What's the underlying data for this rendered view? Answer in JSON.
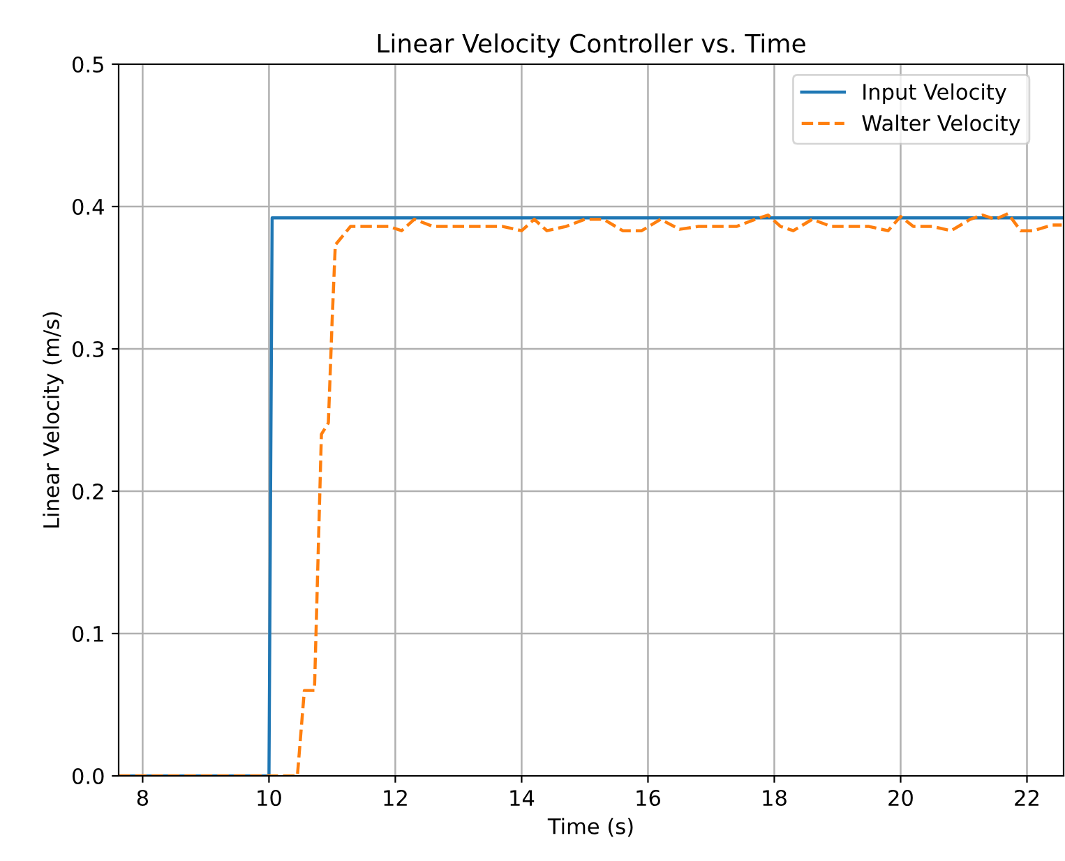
{
  "chart_data": {
    "type": "line",
    "title": "Linear Velocity Controller vs. Time",
    "xlabel": "Time (s)",
    "ylabel": "Linear Velocity (m/s)",
    "xlim": [
      7.62,
      22.58
    ],
    "xticks": [
      8,
      10,
      12,
      14,
      16,
      18,
      20,
      22
    ],
    "ylim": [
      0,
      0.5
    ],
    "yticks": [
      {
        "value": 0,
        "label": "0.0"
      },
      0.1,
      0.2,
      0.3,
      0.4,
      0.5
    ],
    "grid": true,
    "legend": "top right",
    "series": [
      {
        "name": "Input Velocity",
        "color": "#1f77b4",
        "line_style": "solid",
        "x": [
          7.62,
          10.0,
          10.05,
          22.55
        ],
        "values": [
          0,
          0,
          0.392,
          0.392
        ]
      },
      {
        "name": "Walter Velocity",
        "color": "#ff7f0e",
        "line_style": "dashed",
        "x": [
          7.62,
          10.45,
          10.56,
          10.72,
          10.83,
          10.94,
          11.0,
          11.05,
          11.29,
          11.6,
          11.9,
          12.1,
          12.3,
          12.6,
          13.0,
          13.4,
          13.7,
          14.0,
          14.2,
          14.4,
          14.7,
          15.0,
          15.3,
          15.6,
          15.9,
          16.2,
          16.5,
          16.8,
          17.1,
          17.4,
          17.7,
          17.9,
          18.1,
          18.3,
          18.6,
          18.9,
          19.2,
          19.5,
          19.8,
          20.0,
          20.2,
          20.5,
          20.8,
          21.1,
          21.3,
          21.5,
          21.7,
          21.9,
          22.1,
          22.4,
          22.55
        ],
        "values": [
          0,
          0,
          0.06,
          0.06,
          0.24,
          0.248,
          0.32,
          0.373,
          0.386,
          0.386,
          0.386,
          0.383,
          0.391,
          0.386,
          0.386,
          0.386,
          0.386,
          0.383,
          0.391,
          0.383,
          0.386,
          0.391,
          0.391,
          0.383,
          0.383,
          0.391,
          0.384,
          0.386,
          0.386,
          0.386,
          0.391,
          0.394,
          0.386,
          0.383,
          0.391,
          0.386,
          0.386,
          0.386,
          0.383,
          0.393,
          0.386,
          0.386,
          0.383,
          0.391,
          0.394,
          0.391,
          0.395,
          0.383,
          0.383,
          0.387,
          0.387
        ]
      }
    ]
  }
}
